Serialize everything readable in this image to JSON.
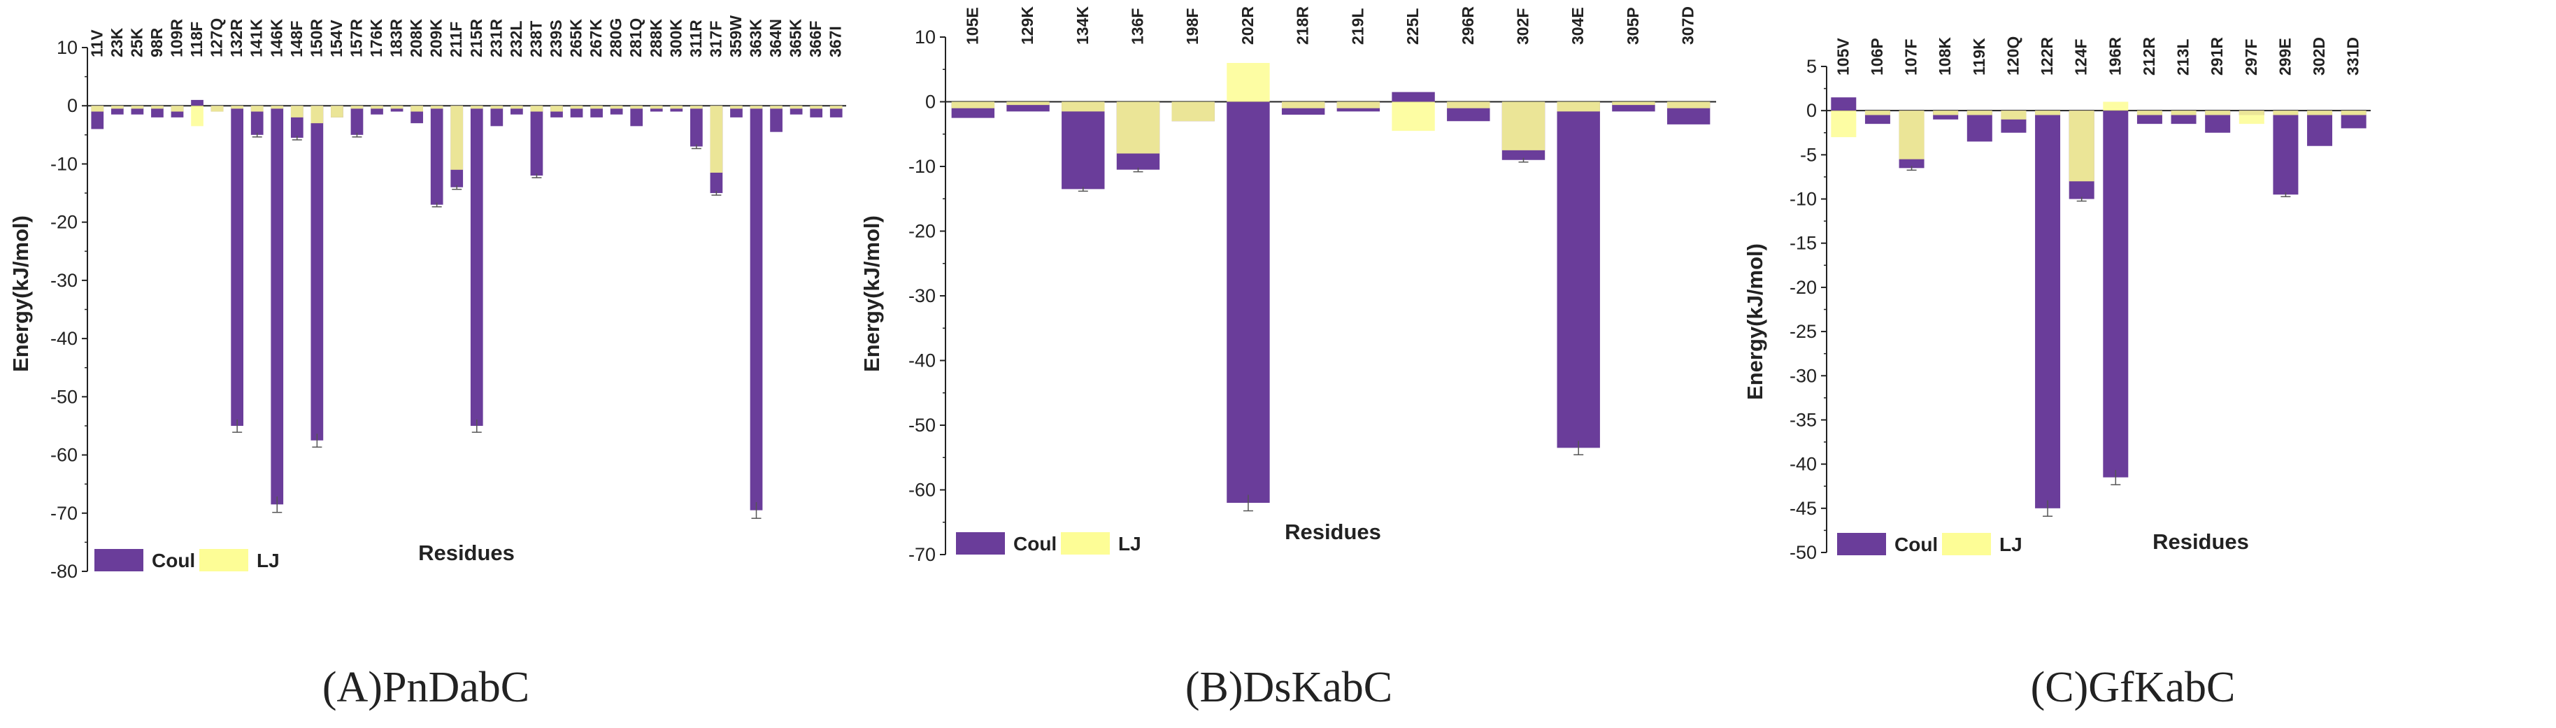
{
  "figure": {
    "colors": {
      "coul": "#6a3d9a",
      "lj": "#fdfd96",
      "axis": "#222222",
      "error": "#555555"
    }
  },
  "chart_data": [
    {
      "type": "bar",
      "title": "(A)PnDabC",
      "xlabel": "Residues",
      "ylabel": "Energy(kJ/mol)",
      "ylim": [
        -80,
        10
      ],
      "yticks": [
        10,
        0,
        -10,
        -20,
        -30,
        -40,
        -50,
        -60,
        -70,
        -80
      ],
      "categories": [
        "11V",
        "23K",
        "25K",
        "98R",
        "109R",
        "118F",
        "127Q",
        "132R",
        "141K",
        "146K",
        "148F",
        "150R",
        "154V",
        "157R",
        "176K",
        "183R",
        "208K",
        "209K",
        "211F",
        "215R",
        "231R",
        "232L",
        "238T",
        "239S",
        "265K",
        "267K",
        "280G",
        "281Q",
        "288K",
        "300K",
        "311R",
        "317F",
        "359W",
        "363K",
        "364N",
        "365K",
        "366F",
        "367I"
      ],
      "series": [
        {
          "name": "Coul",
          "values": [
            -4,
            -1.5,
            -1.5,
            -2,
            -2,
            1,
            -1,
            -55,
            -5,
            -68.5,
            -5.5,
            -57.5,
            -2,
            -5,
            -1.5,
            -1,
            -3,
            -17,
            -14,
            -55,
            -3.5,
            -1.5,
            -12,
            -2,
            -2,
            -2,
            -1.5,
            -3.5,
            -1,
            -1,
            -7,
            -15,
            -2,
            -69.5,
            -4.5,
            -1.5,
            -2,
            -2
          ]
        },
        {
          "name": "LJ",
          "values": [
            -1,
            -0.5,
            -0.5,
            -0.5,
            -1,
            -3.5,
            -1,
            -0.5,
            -1,
            -0.5,
            -2,
            -3,
            -2,
            -0.5,
            -0.5,
            -0.5,
            -1,
            -0.5,
            -11,
            -0.5,
            -0.5,
            -0.5,
            -1,
            -1,
            -0.5,
            -0.5,
            -0.5,
            -0.5,
            -0.5,
            -0.5,
            -0.5,
            -11.5,
            -0.5,
            -0.5,
            -0.5,
            -0.5,
            -0.5,
            -0.5
          ]
        }
      ],
      "legend": [
        "Coul",
        "LJ"
      ]
    },
    {
      "type": "bar",
      "title": "(B)DsKabC",
      "xlabel": "Residues",
      "ylabel": "Energy(kJ/mol)",
      "ylim": [
        -70,
        10
      ],
      "yticks": [
        10,
        0,
        -10,
        -20,
        -30,
        -40,
        -50,
        -60,
        -70
      ],
      "categories": [
        "105E",
        "129K",
        "134K",
        "136F",
        "198F",
        "202R",
        "218R",
        "219L",
        "225L",
        "296R",
        "302F",
        "304E",
        "305P",
        "307D"
      ],
      "series": [
        {
          "name": "Coul",
          "values": [
            -2.5,
            -1.5,
            -13.5,
            -10.5,
            -3,
            -62,
            -2,
            -1.5,
            1.5,
            -3,
            -9,
            -53.5,
            -1.5,
            -3.5
          ]
        },
        {
          "name": "LJ",
          "values": [
            -1,
            -0.5,
            -1.5,
            -8,
            -3,
            6,
            -1,
            -1,
            -4.5,
            -1,
            -7.5,
            -1.5,
            -0.5,
            -1
          ]
        }
      ],
      "legend": [
        "Coul",
        "LJ"
      ]
    },
    {
      "type": "bar",
      "title": "(C)GfKabC",
      "xlabel": "Residues",
      "ylabel": "Energy(kJ/mol)",
      "ylim": [
        -50,
        5
      ],
      "yticks": [
        5,
        0,
        -5,
        -10,
        -15,
        -20,
        -25,
        -30,
        -35,
        -40,
        -45,
        -50
      ],
      "categories": [
        "105V",
        "106P",
        "107F",
        "108K",
        "119K",
        "120Q",
        "122R",
        "124F",
        "196R",
        "212R",
        "213L",
        "291R",
        "297F",
        "299E",
        "302D",
        "331D"
      ],
      "series": [
        {
          "name": "Coul",
          "values": [
            1.5,
            -1.5,
            -6.5,
            -1,
            -3.5,
            -2.5,
            -45,
            -10,
            -41.5,
            -1.5,
            -1.5,
            -2.5,
            -0.5,
            -9.5,
            -4,
            -2
          ]
        },
        {
          "name": "LJ",
          "values": [
            -3,
            -0.5,
            -5.5,
            -0.5,
            -0.5,
            -1,
            -0.5,
            -8,
            1,
            -0.5,
            -0.5,
            -0.5,
            -1.5,
            -0.5,
            -0.5,
            -0.5
          ]
        }
      ],
      "legend": [
        "Coul",
        "LJ"
      ]
    }
  ]
}
